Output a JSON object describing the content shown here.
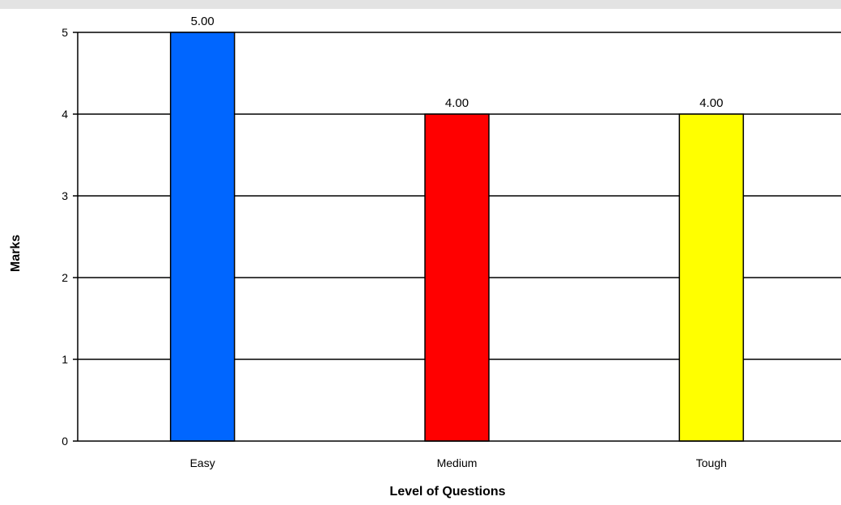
{
  "chart_data": {
    "type": "bar",
    "xlabel": "Level of Questions",
    "ylabel": "Marks",
    "categories": [
      "Easy",
      "Medium",
      "Tough"
    ],
    "values": [
      5,
      4,
      4
    ],
    "data_labels": [
      "5.00",
      "4.00",
      "4.00"
    ],
    "bar_colors": [
      "#0066ff",
      "#ff0000",
      "#ffff00"
    ],
    "ylim": [
      0,
      5
    ],
    "yticks": [
      "0",
      "1",
      "2",
      "3",
      "4",
      "5"
    ],
    "grid": true,
    "legend": "none"
  }
}
